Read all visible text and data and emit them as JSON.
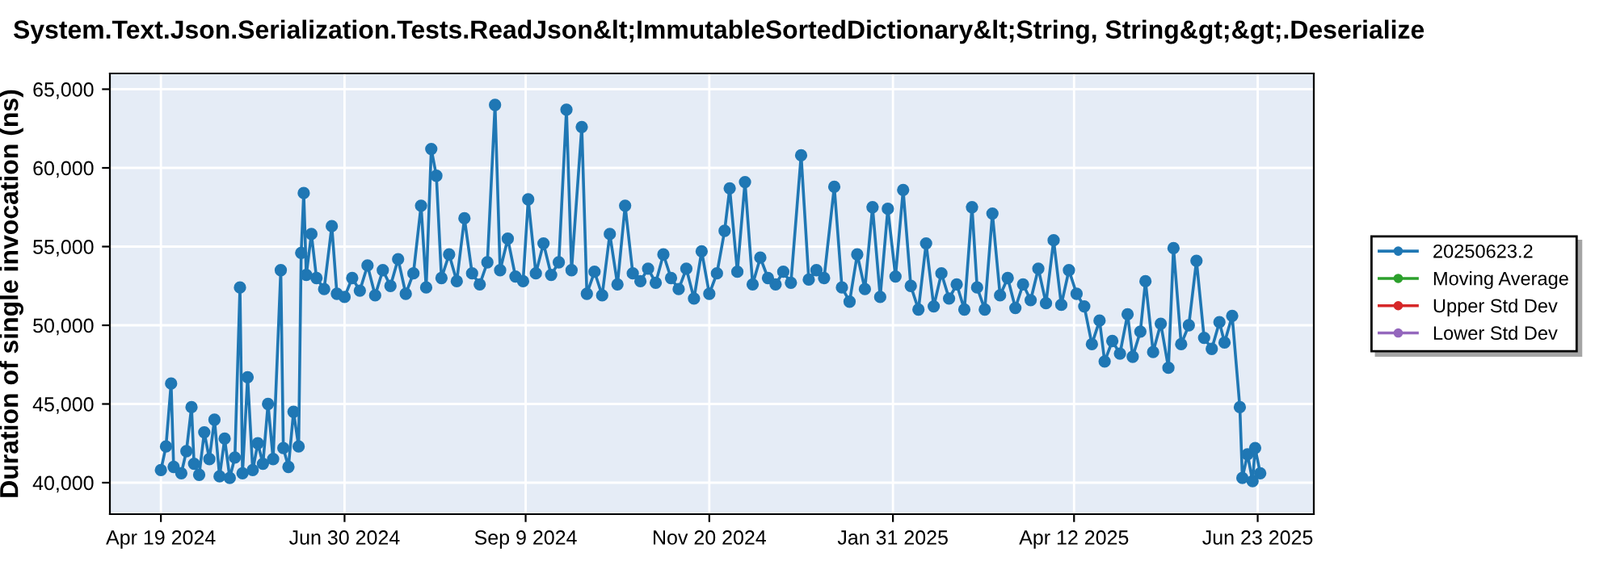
{
  "chart_data": {
    "type": "line",
    "title": "System.Text.Json.Serialization.Tests.ReadJson&lt;ImmutableSortedDictionary&lt;String, String&gt;&gt;.Deserialize",
    "ylabel": "Duration of single invocation (ns)",
    "xlim": [
      "2024-03-30",
      "2025-07-15"
    ],
    "xticks": [
      {
        "value": "2024-04-19",
        "label": "Apr 19 2024"
      },
      {
        "value": "2024-06-30",
        "label": "Jun 30 2024"
      },
      {
        "value": "2024-09-09",
        "label": "Sep 9 2024"
      },
      {
        "value": "2024-11-20",
        "label": "Nov 20 2024"
      },
      {
        "value": "2025-01-31",
        "label": "Jan 31 2025"
      },
      {
        "value": "2025-04-12",
        "label": "Apr 12 2025"
      },
      {
        "value": "2025-06-23",
        "label": "Jun 23 2025"
      }
    ],
    "ylim": [
      38000,
      66000
    ],
    "yticks": [
      {
        "value": 40000,
        "label": "40,000"
      },
      {
        "value": 45000,
        "label": "45,000"
      },
      {
        "value": 50000,
        "label": "50,000"
      },
      {
        "value": 55000,
        "label": "55,000"
      },
      {
        "value": 60000,
        "label": "60,000"
      },
      {
        "value": 65000,
        "label": "65,000"
      }
    ],
    "grid": true,
    "legend": "right",
    "marker": "circle",
    "line_style": "solid",
    "series": [
      {
        "name": "20250623.2",
        "color": "#1f77b4",
        "x": [
          "2024-04-19",
          "2024-04-21",
          "2024-04-23",
          "2024-04-24",
          "2024-04-27",
          "2024-04-29",
          "2024-05-01",
          "2024-05-02",
          "2024-05-04",
          "2024-05-06",
          "2024-05-08",
          "2024-05-10",
          "2024-05-12",
          "2024-05-14",
          "2024-05-16",
          "2024-05-18",
          "2024-05-20",
          "2024-05-21",
          "2024-05-23",
          "2024-05-25",
          "2024-05-27",
          "2024-05-29",
          "2024-05-31",
          "2024-06-02",
          "2024-06-05",
          "2024-06-06",
          "2024-06-08",
          "2024-06-10",
          "2024-06-12",
          "2024-06-13",
          "2024-06-14",
          "2024-06-15",
          "2024-06-17",
          "2024-06-19",
          "2024-06-22",
          "2024-06-25",
          "2024-06-27",
          "2024-06-30",
          "2024-07-03",
          "2024-07-06",
          "2024-07-09",
          "2024-07-12",
          "2024-07-15",
          "2024-07-18",
          "2024-07-21",
          "2024-07-24",
          "2024-07-27",
          "2024-07-30",
          "2024-08-01",
          "2024-08-03",
          "2024-08-05",
          "2024-08-07",
          "2024-08-10",
          "2024-08-13",
          "2024-08-16",
          "2024-08-19",
          "2024-08-22",
          "2024-08-25",
          "2024-08-28",
          "2024-08-30",
          "2024-09-02",
          "2024-09-05",
          "2024-09-08",
          "2024-09-10",
          "2024-09-13",
          "2024-09-16",
          "2024-09-19",
          "2024-09-22",
          "2024-09-25",
          "2024-09-27",
          "2024-10-01",
          "2024-10-03",
          "2024-10-06",
          "2024-10-09",
          "2024-10-12",
          "2024-10-15",
          "2024-10-18",
          "2024-10-21",
          "2024-10-24",
          "2024-10-27",
          "2024-10-30",
          "2024-11-02",
          "2024-11-05",
          "2024-11-08",
          "2024-11-11",
          "2024-11-14",
          "2024-11-17",
          "2024-11-20",
          "2024-11-23",
          "2024-11-26",
          "2024-11-28",
          "2024-12-01",
          "2024-12-04",
          "2024-12-07",
          "2024-12-10",
          "2024-12-13",
          "2024-12-16",
          "2024-12-19",
          "2024-12-22",
          "2024-12-26",
          "2024-12-29",
          "2025-01-01",
          "2025-01-04",
          "2025-01-08",
          "2025-01-11",
          "2025-01-14",
          "2025-01-17",
          "2025-01-20",
          "2025-01-23",
          "2025-01-26",
          "2025-01-29",
          "2025-02-01",
          "2025-02-04",
          "2025-02-07",
          "2025-02-10",
          "2025-02-13",
          "2025-02-16",
          "2025-02-19",
          "2025-02-22",
          "2025-02-25",
          "2025-02-28",
          "2025-03-03",
          "2025-03-05",
          "2025-03-08",
          "2025-03-11",
          "2025-03-14",
          "2025-03-17",
          "2025-03-20",
          "2025-03-23",
          "2025-03-26",
          "2025-03-29",
          "2025-04-01",
          "2025-04-04",
          "2025-04-07",
          "2025-04-10",
          "2025-04-13",
          "2025-04-16",
          "2025-04-19",
          "2025-04-22",
          "2025-04-24",
          "2025-04-27",
          "2025-04-30",
          "2025-05-03",
          "2025-05-05",
          "2025-05-08",
          "2025-05-10",
          "2025-05-13",
          "2025-05-16",
          "2025-05-19",
          "2025-05-21",
          "2025-05-24",
          "2025-05-27",
          "2025-05-30",
          "2025-06-02",
          "2025-06-05",
          "2025-06-08",
          "2025-06-10",
          "2025-06-13",
          "2025-06-16",
          "2025-06-17",
          "2025-06-19",
          "2025-06-21",
          "2025-06-22",
          "2025-06-24"
        ],
        "values": [
          40800,
          42300,
          46300,
          41000,
          40600,
          42000,
          44800,
          41200,
          40500,
          43200,
          41500,
          44000,
          40400,
          42800,
          40300,
          41600,
          52400,
          40600,
          46700,
          40800,
          42500,
          41200,
          45000,
          41500,
          53500,
          42200,
          41000,
          44500,
          42300,
          54600,
          58400,
          53200,
          55800,
          53000,
          52300,
          56300,
          52000,
          51800,
          53000,
          52200,
          53800,
          51900,
          53500,
          52500,
          54200,
          52000,
          53300,
          57600,
          52400,
          61200,
          59500,
          53000,
          54500,
          52800,
          56800,
          53300,
          52600,
          54000,
          64000,
          53500,
          55500,
          53100,
          52800,
          58000,
          53300,
          55200,
          53200,
          54000,
          63700,
          53500,
          62600,
          52000,
          53400,
          51900,
          55800,
          52600,
          57600,
          53300,
          52800,
          53600,
          52700,
          54500,
          53000,
          52300,
          53600,
          51700,
          54700,
          52000,
          53300,
          56000,
          58700,
          53400,
          59100,
          52600,
          54300,
          53000,
          52600,
          53400,
          52700,
          60800,
          52900,
          53500,
          53000,
          58800,
          52400,
          51500,
          54500,
          52300,
          57500,
          51800,
          57400,
          53100,
          58600,
          52500,
          51000,
          55200,
          51200,
          53300,
          51700,
          52600,
          51000,
          57500,
          52400,
          51000,
          57100,
          51900,
          53000,
          51100,
          52600,
          51600,
          53600,
          51400,
          55400,
          51300,
          53500,
          52000,
          51200,
          48800,
          50300,
          47700,
          49000,
          48200,
          50700,
          48000,
          49600,
          52800,
          48300,
          50100,
          47300,
          54900,
          48800,
          50000,
          54100,
          49200,
          48500,
          50200,
          48900,
          50600,
          44800,
          40300,
          41800,
          40100,
          42200,
          40600
        ]
      },
      {
        "name": "Moving Average",
        "color": "#2ca02c"
      },
      {
        "name": "Upper Std Dev",
        "color": "#d62728"
      },
      {
        "name": "Lower Std Dev",
        "color": "#9467bd"
      }
    ]
  }
}
